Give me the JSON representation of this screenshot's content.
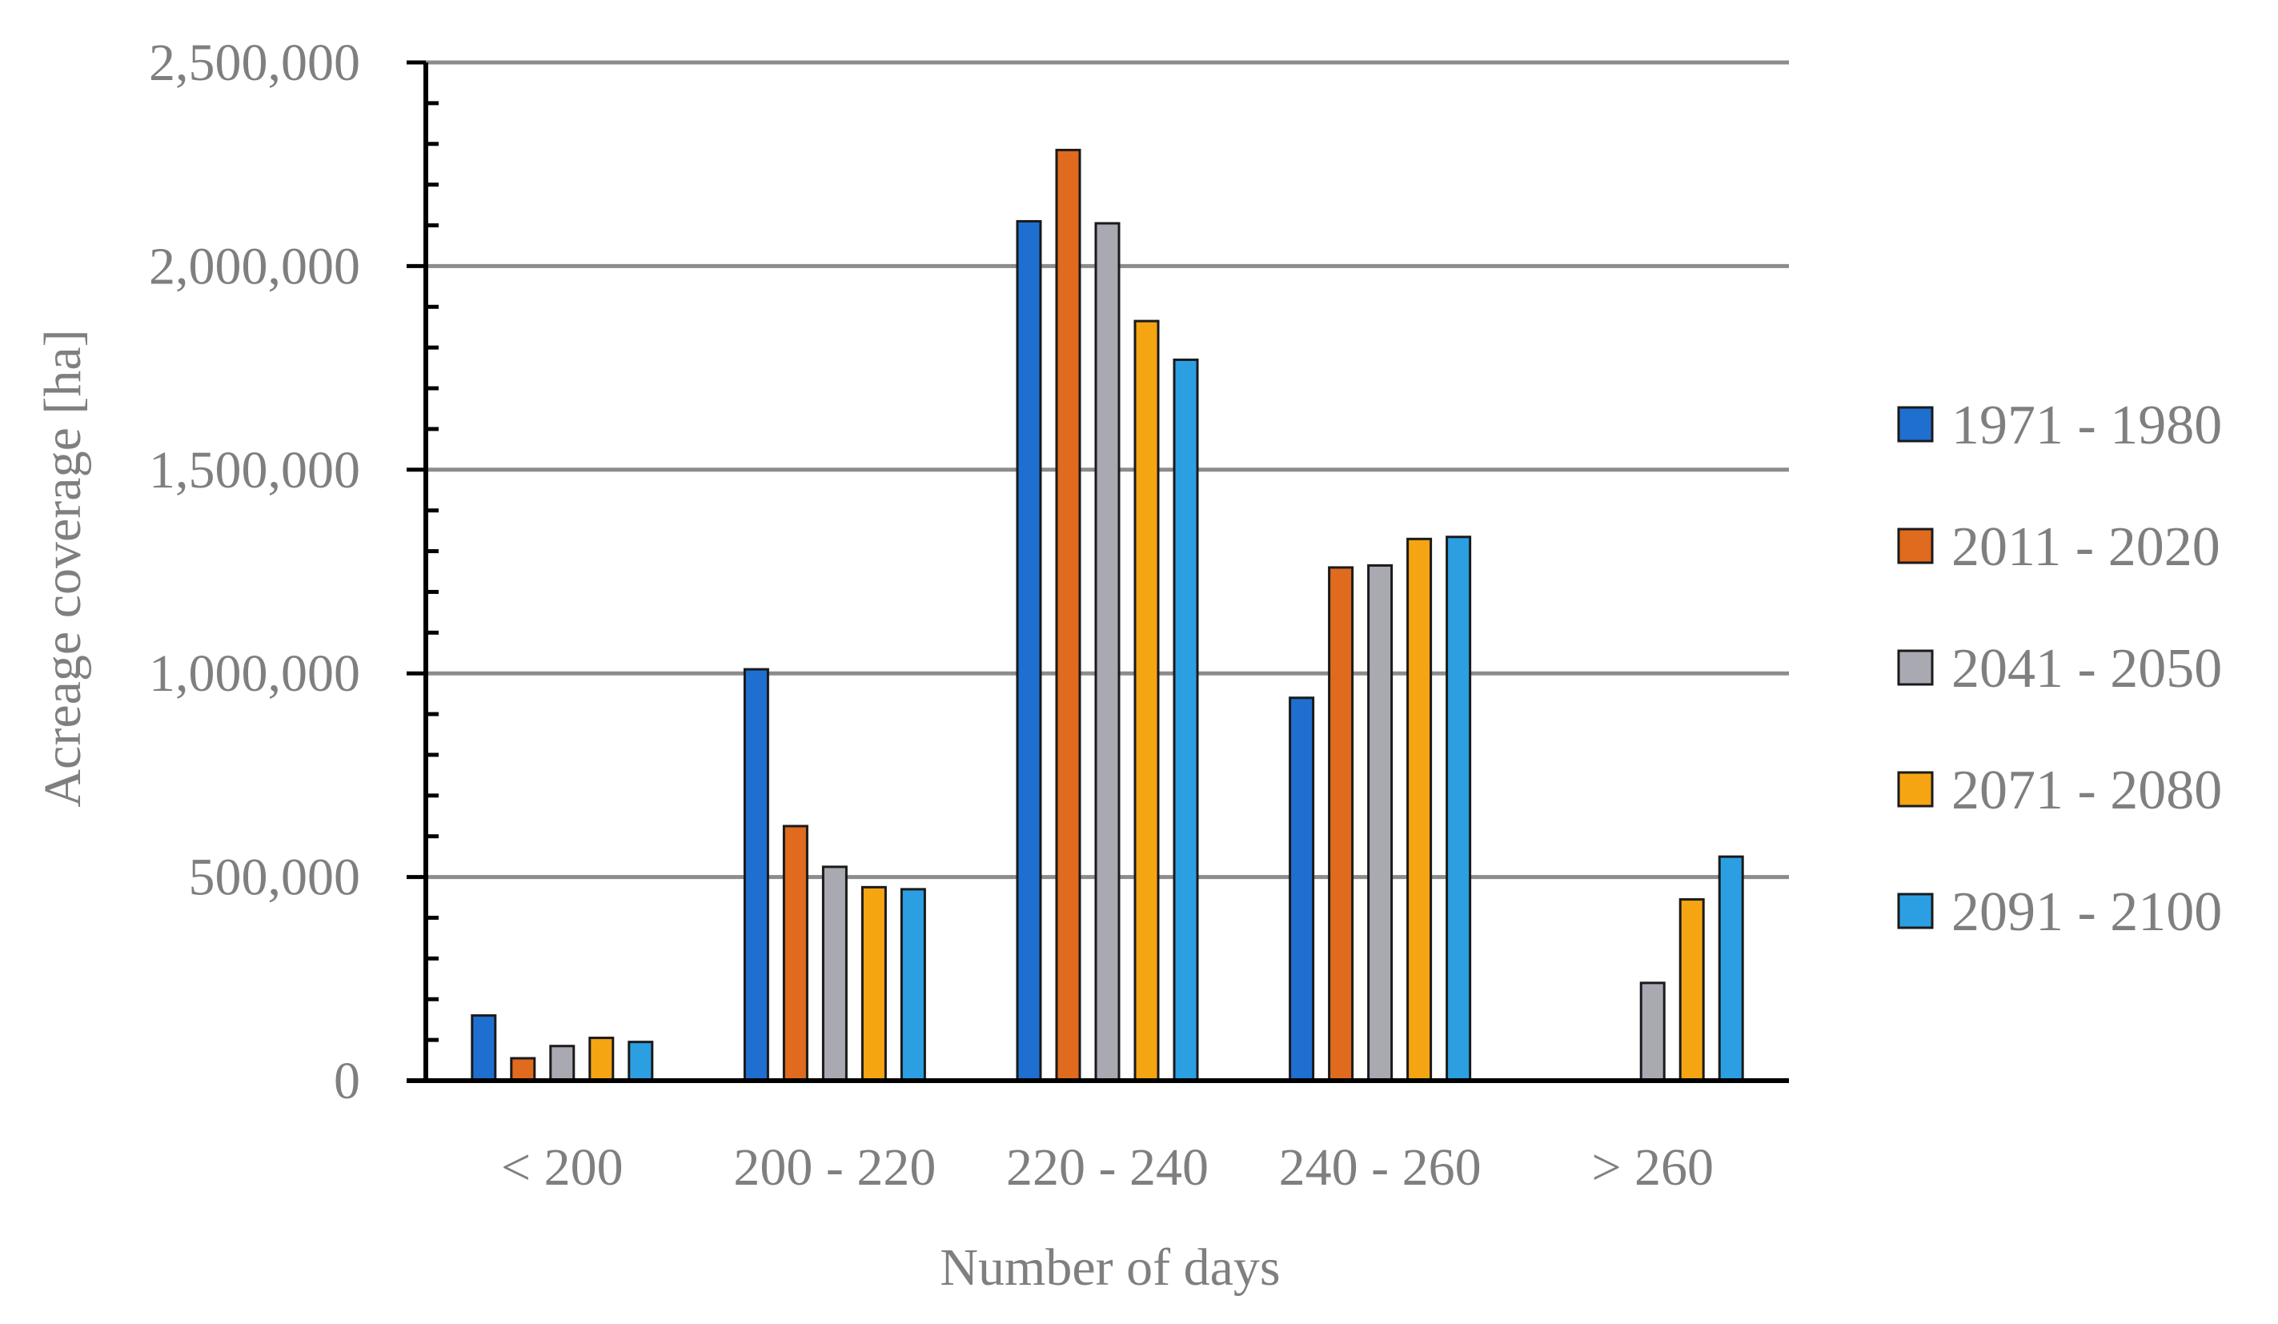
{
  "chart_data": {
    "type": "bar",
    "title": "",
    "xlabel": "Number of days",
    "ylabel": "Acreage coverage  [ha]",
    "ylim": [
      0,
      2500000
    ],
    "y_ticks": [
      0,
      500000,
      1000000,
      1500000,
      2000000,
      2500000
    ],
    "y_tick_labels": [
      "0",
      "500,000",
      "1,000,000",
      "1,500,000",
      "2,000,000",
      "2,500,000"
    ],
    "grid": true,
    "legend_position": "right",
    "categories": [
      "< 200",
      "200 - 220",
      "220 - 240",
      "240 - 260",
      "> 260"
    ],
    "series": [
      {
        "name": "1971 - 1980",
        "color": "#1f6fd0",
        "values": [
          160000,
          1010000,
          2110000,
          940000,
          0
        ]
      },
      {
        "name": "2011 - 2020",
        "color": "#e06a1e",
        "values": [
          55000,
          625000,
          2285000,
          1260000,
          0
        ]
      },
      {
        "name": "2041 - 2050",
        "color": "#a9a9b2",
        "values": [
          85000,
          525000,
          2105000,
          1265000,
          240000
        ]
      },
      {
        "name": "2071 - 2080",
        "color": "#f5a512",
        "values": [
          105000,
          475000,
          1865000,
          1330000,
          445000
        ]
      },
      {
        "name": "2091 - 2100",
        "color": "#2c9fe3",
        "values": [
          95000,
          470000,
          1770000,
          1335000,
          550000
        ]
      }
    ]
  }
}
